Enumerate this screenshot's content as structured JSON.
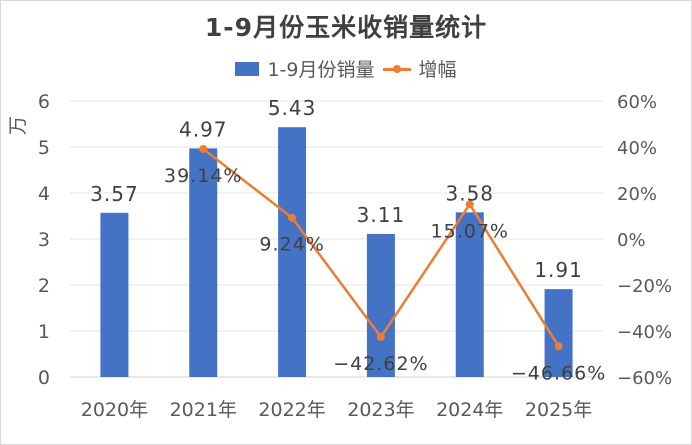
{
  "title": "1-9月份玉米收销量统计",
  "legend": [
    {
      "label": "1-9月份销量",
      "type": "bar",
      "color": "#4472c4"
    },
    {
      "label": "增幅",
      "type": "line",
      "color": "#ed7d31"
    }
  ],
  "y_left_unit": "万",
  "colors": {
    "bar": "#4472c4",
    "line": "#ed7d31",
    "grid": "#e6e6e6",
    "text": "#595959",
    "title": "#404040"
  },
  "chart_data": {
    "type": "bar",
    "title": "1-9月份玉米收销量统计",
    "categories": [
      "2020年",
      "2021年",
      "2022年",
      "2023年",
      "2024年",
      "2025年"
    ],
    "series": [
      {
        "name": "1-9月份销量",
        "type": "bar",
        "axis": "left",
        "values": [
          3.57,
          4.97,
          5.43,
          3.11,
          3.58,
          1.91
        ],
        "labels": [
          "3.57",
          "4.97",
          "5.43",
          "3.11",
          "3.58",
          "1.91"
        ]
      },
      {
        "name": "增幅",
        "type": "line",
        "axis": "right",
        "values": [
          null,
          39.14,
          9.24,
          -42.62,
          15.07,
          -46.66
        ],
        "labels": [
          "",
          "39.14%",
          "9.24%",
          "-42.62%",
          "15.07%",
          "-46.66%"
        ]
      }
    ],
    "xlabel": "",
    "ylabel": "万",
    "ylim": [
      0,
      6
    ],
    "y_ticks": [
      "0",
      "1",
      "2",
      "3",
      "4",
      "5",
      "6"
    ],
    "y2lim": [
      -60,
      60
    ],
    "y2_ticks": [
      "-60%",
      "-40%",
      "-20%",
      "0%",
      "20%",
      "40%",
      "60%"
    ],
    "grid": true,
    "legend_position": "top"
  }
}
